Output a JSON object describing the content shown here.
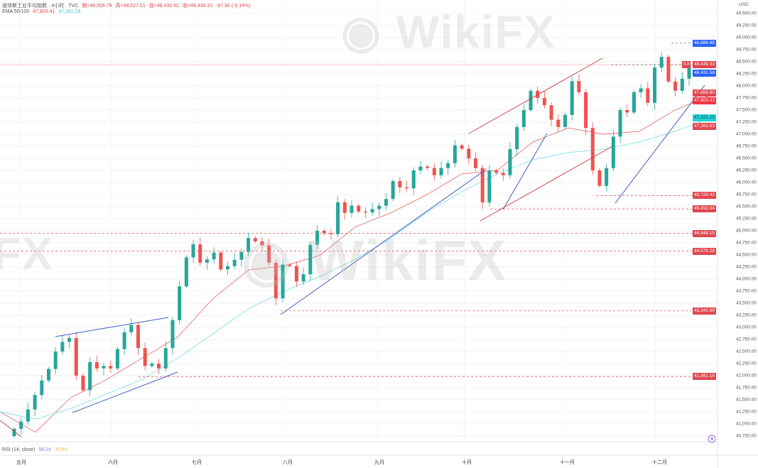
{
  "header": {
    "symbol": "道琼斯工业平均指数 · 4小时 · TVC",
    "open": "開=48,506.78",
    "high": "高=48,527.51",
    "low": "低=48,430.92",
    "close": "收=48,439.33",
    "change": "-67.90 (-0.14%)",
    "ema_label": "EMA 50/100",
    "ema50_value": "47,803.41",
    "ema100_value": "47,331.29"
  },
  "rsi": {
    "label": "RSI (14, close)",
    "value1": "58.24",
    "value2": "35.64"
  },
  "watermark": "WikiFX",
  "currency": "USD",
  "countdown_badge": "0.8",
  "colors": {
    "up": "#26a69a",
    "down": "#ef5350",
    "ema50": "#e57373",
    "ema100": "#80deea",
    "trend_blue": "#3f5fbf",
    "trend_red": "#d0414a",
    "level": "#e0474f"
  },
  "chart_data": {
    "type": "candlestick",
    "x_labels": [
      "五月",
      "六月",
      "七月",
      "八月",
      "九月",
      "十月",
      "十一月",
      "十二月"
    ],
    "ylim": [
      40650,
      49600
    ],
    "y_ticks": [
      "49,500.00",
      "49,250.00",
      "49,000.00",
      "48,750.00",
      "48,500.00",
      "48,250.00",
      "48,000.00",
      "47,750.00",
      "47,500.00",
      "47,250.00",
      "47,000.00",
      "46,750.00",
      "46,500.00",
      "46,250.00",
      "46,000.00",
      "45,750.00",
      "45,500.00",
      "45,250.00",
      "45,000.00",
      "44,750.00",
      "44,500.00",
      "44,250.00",
      "44,000.00",
      "43,750.00",
      "43,500.00",
      "43,250.00",
      "43,000.00",
      "42,750.00",
      "42,500.00",
      "42,250.00",
      "42,000.00",
      "41,750.00",
      "41,500.00",
      "41,250.00",
      "41,000.00",
      "40,750.00"
    ],
    "closes": [
      40900,
      41050,
      41300,
      41600,
      41900,
      42140,
      42500,
      42700,
      42780,
      42000,
      41700,
      42280,
      42150,
      42200,
      42150,
      42550,
      42900,
      43050,
      42570,
      42200,
      42250,
      42150,
      42570,
      43150,
      43850,
      44450,
      44720,
      44340,
      44410,
      44550,
      44200,
      44270,
      44400,
      44560,
      44850,
      44780,
      44700,
      44340,
      43600,
      44300,
      44270,
      43950,
      44100,
      44710,
      45000,
      44950,
      44930,
      45590,
      45370,
      45520,
      45400,
      45380,
      45450,
      45520,
      45660,
      46030,
      45900,
      45880,
      46250,
      46330,
      46300,
      46150,
      46300,
      46400,
      46770,
      46700,
      46500,
      46300,
      45590,
      46250,
      46200,
      46150,
      46690,
      47150,
      47500,
      47900,
      47750,
      47600,
      47300,
      47150,
      47400,
      48100,
      47870,
      47130,
      46250,
      45930,
      46300,
      46950,
      47500,
      47450,
      47870,
      47950,
      47650,
      48380,
      48600,
      48090,
      47900,
      48150,
      48439.33
    ],
    "series": [
      {
        "name": "EMA 50",
        "values": [
          41250,
          40830,
          41550,
          41920,
          42360,
          42800,
          43600,
          44190,
          44270,
          44490,
          45080,
          45370,
          45740,
          46180,
          46250,
          46840,
          47130,
          47000,
          47060,
          47500,
          47803.41
        ]
      },
      {
        "name": "EMA 100",
        "values": [
          41250,
          41100,
          41320,
          41620,
          41920,
          42360,
          42870,
          43390,
          43750,
          44050,
          44410,
          44850,
          45370,
          45810,
          46180,
          46470,
          46620,
          46690,
          46840,
          47060,
          47331.29
        ]
      }
    ],
    "price_labels": [
      {
        "value": "48,886.85",
        "color": "#2962ff"
      },
      {
        "value": "48,439.33",
        "color": "#e0474f"
      },
      {
        "value": "48,431.58",
        "color": "#2962ff"
      },
      {
        "value": "47,856.80",
        "color": "#e0474f"
      },
      {
        "value": "47,803.41",
        "color": "#f23645"
      },
      {
        "value": "47,331.29",
        "color": "#22d3d3"
      },
      {
        "value": "47,263.93",
        "color": "#e0474f"
      },
      {
        "value": "45,729.42",
        "color": "#e0474f"
      },
      {
        "value": "45,452.04",
        "color": "#e0474f"
      },
      {
        "value": "44,948.15",
        "color": "#e0474f"
      },
      {
        "value": "44,579.28",
        "color": "#e0474f"
      },
      {
        "value": "43,340.69",
        "color": "#e0474f"
      },
      {
        "value": "41,981.15",
        "color": "#e0474f"
      }
    ],
    "grid": true
  }
}
